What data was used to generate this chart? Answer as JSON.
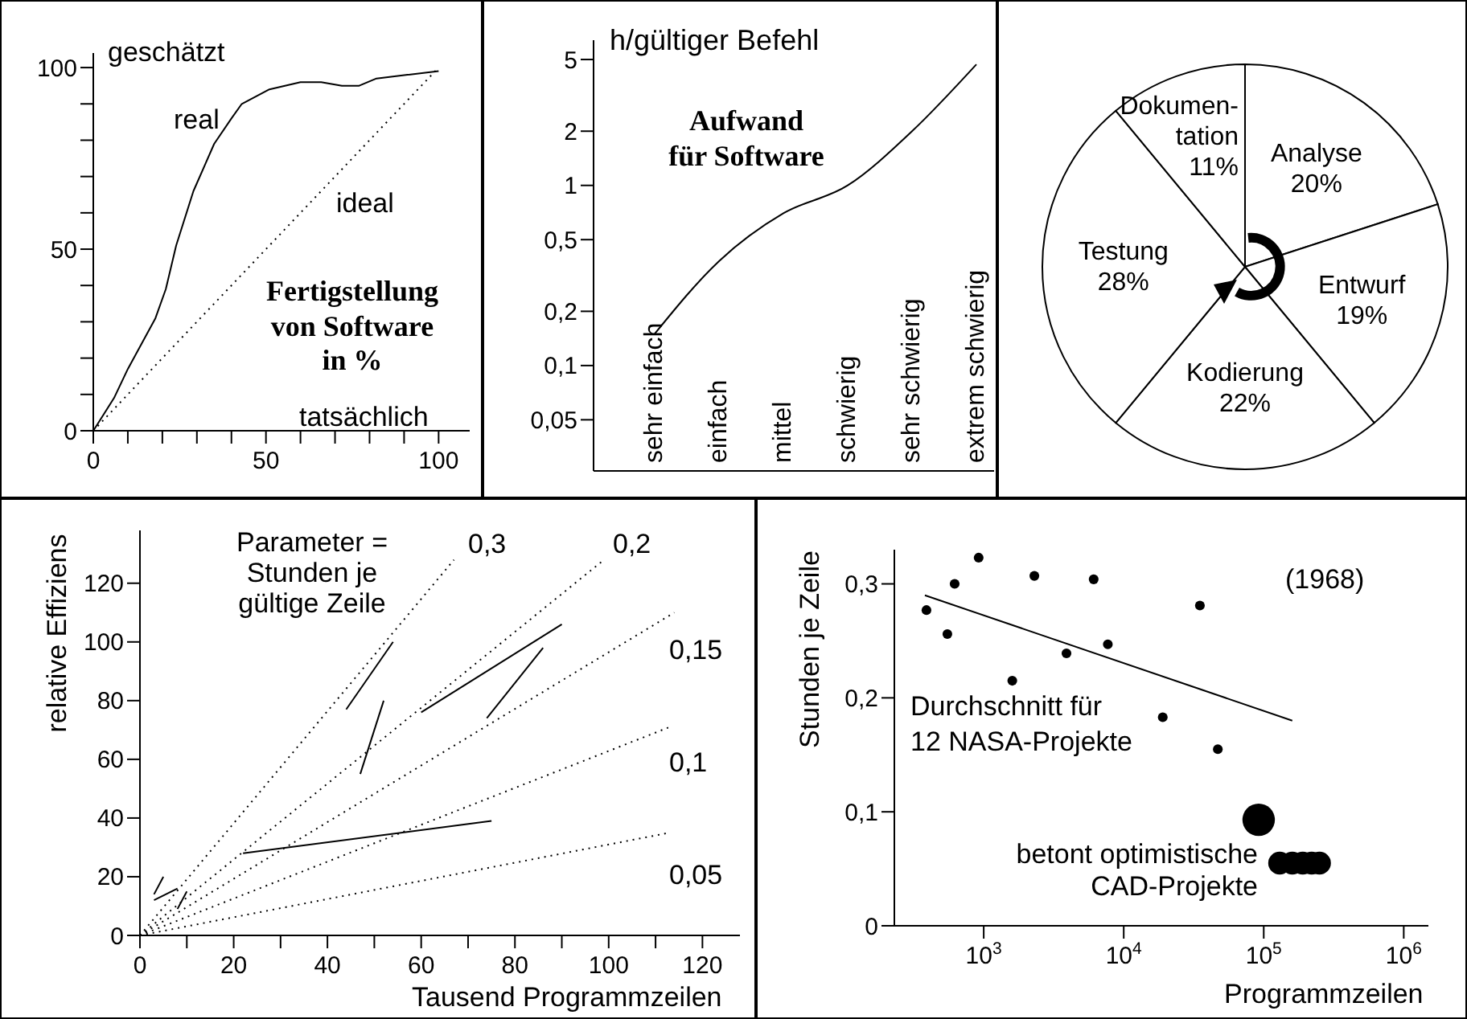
{
  "chart_data": [
    {
      "type": "line",
      "title": "Fertigstellung\nvon Software\nin %",
      "xlabel": "tatsächlich",
      "ylabel": "geschätzt",
      "xlim": [
        0,
        109
      ],
      "ylim": [
        0,
        104
      ],
      "xticks": [
        0,
        {
          "value": 10,
          "label": null
        },
        {
          "value": 20,
          "label": null
        },
        {
          "value": 30,
          "label": null
        },
        {
          "value": 40,
          "label": null
        },
        50,
        {
          "value": 60,
          "label": null
        },
        {
          "value": 70,
          "label": null
        },
        {
          "value": 80,
          "label": null
        },
        {
          "value": 90,
          "label": null
        },
        100
      ],
      "yticks": [
        0,
        {
          "value": 10,
          "label": null
        },
        {
          "value": 20,
          "label": null
        },
        {
          "value": 30,
          "label": null
        },
        {
          "value": 40,
          "label": null
        },
        50,
        {
          "value": 60,
          "label": null
        },
        {
          "value": 70,
          "label": null
        },
        {
          "value": 80,
          "label": null
        },
        {
          "value": 90,
          "label": null
        },
        100
      ],
      "series": [
        {
          "name": "real",
          "color": "#000000",
          "line_style": "solid",
          "x": [
            0,
            6,
            10,
            18,
            21,
            24,
            29,
            35,
            40,
            43,
            51,
            60,
            66,
            72,
            77,
            82,
            91,
            100
          ],
          "values": [
            0,
            9,
            17,
            31,
            39,
            51,
            66,
            79,
            86,
            90,
            94,
            96,
            96,
            95,
            95,
            97,
            98,
            99
          ]
        },
        {
          "name": "ideal",
          "color": "#000000",
          "line_style": "dotted",
          "x": [
            0,
            100
          ],
          "values": [
            0,
            100
          ]
        }
      ]
    },
    {
      "type": "line",
      "title": "Aufwand\nfür Software",
      "ylabel": "h/gültiger Befehl",
      "categories": [
        "sehr einfach",
        "einfach",
        "mittel",
        "schwierig",
        "sehr schwierig",
        "extrem schwierig"
      ],
      "values": [
        0.15,
        0.38,
        0.7,
        1,
        2,
        4.7
      ],
      "color": "#000000",
      "log": "y",
      "ylim": [
        0.026,
        6.4
      ],
      "yticks": [
        {
          "value": 0.05,
          "label": "0,05"
        },
        {
          "value": 0.1,
          "label": "0,1"
        },
        {
          "value": 0.2,
          "label": "0,2"
        },
        {
          "value": 0.5,
          "label": "0,5"
        },
        1,
        2,
        5
      ]
    },
    {
      "type": "pie",
      "categories": [
        "Analyse",
        "Entwurf",
        "Kodierung",
        "Testung",
        "Dokumen-\ntation"
      ],
      "values": [
        20,
        19,
        22,
        28,
        11
      ],
      "value_labels": [
        "20%",
        "19%",
        "22%",
        "28%",
        "11%"
      ],
      "colors": [
        "#ffffff",
        "#ffffff",
        "#ffffff",
        "#ffffff",
        "#ffffff"
      ]
    },
    {
      "type": "line",
      "xlabel": "Tausend Programmzeilen",
      "ylabel": "relative Effiziens",
      "xlim": [
        0,
        128
      ],
      "ylim": [
        0,
        138
      ],
      "xticks": [
        0,
        {
          "value": 10,
          "label": null
        },
        20,
        {
          "value": 30,
          "label": null
        },
        40,
        {
          "value": 50,
          "label": null
        },
        60,
        {
          "value": 70,
          "label": null
        },
        80,
        {
          "value": 90,
          "label": null
        },
        100,
        {
          "value": 110,
          "label": null
        },
        120
      ],
      "yticks": [
        0,
        20,
        40,
        60,
        80,
        100,
        120
      ],
      "annotations": [
        "Parameter =\nStunden je\ngültige Zeile"
      ],
      "series": [
        {
          "name": "0,3",
          "color": "#000000",
          "line_style": "dotted",
          "x": [
            0,
            67
          ],
          "values": [
            0,
            128
          ]
        },
        {
          "name": "0,2",
          "color": "#000000",
          "line_style": "dotted",
          "x": [
            0,
            99
          ],
          "values": [
            0,
            128
          ]
        },
        {
          "name": "0,15",
          "color": "#000000",
          "line_style": "dotted",
          "x": [
            0,
            114
          ],
          "values": [
            0,
            110
          ]
        },
        {
          "name": "0,1",
          "color": "#000000",
          "line_style": "dotted",
          "x": [
            0,
            113
          ],
          "values": [
            0,
            71
          ]
        },
        {
          "name": "0,05",
          "color": "#000000",
          "line_style": "dotted",
          "x": [
            0,
            113
          ],
          "values": [
            0,
            35
          ]
        },
        {
          "color": "#000000",
          "line_style": "solid",
          "x": [
            44,
            54
          ],
          "values": [
            77,
            100
          ]
        },
        {
          "color": "#000000",
          "line_style": "solid",
          "x": [
            47,
            52
          ],
          "values": [
            55,
            80
          ]
        },
        {
          "color": "#000000",
          "line_style": "solid",
          "x": [
            60,
            90
          ],
          "values": [
            76,
            106
          ]
        },
        {
          "color": "#000000",
          "line_style": "solid",
          "x": [
            74,
            86
          ],
          "values": [
            74,
            98
          ]
        },
        {
          "color": "#000000",
          "line_style": "solid",
          "x": [
            22,
            75
          ],
          "values": [
            28,
            39
          ]
        },
        {
          "color": "#000000",
          "line_style": "solid",
          "x": [
            3,
            5
          ],
          "values": [
            14,
            20
          ]
        },
        {
          "color": "#000000",
          "line_style": "solid",
          "x": [
            3,
            8
          ],
          "values": [
            12,
            16
          ]
        },
        {
          "color": "#000000",
          "line_style": "solid",
          "x": [
            8,
            10
          ],
          "values": [
            9,
            15
          ]
        }
      ]
    },
    {
      "type": "scatter",
      "xlabel": "Programmzeilen",
      "ylabel": "Stunden je Zeile",
      "log": "x",
      "xlim": [
        230,
        1500000
      ],
      "ylim": [
        0,
        0.33
      ],
      "xticks": [
        {
          "value": 1000,
          "label": "10$^{3}$"
        },
        {
          "value": 10000,
          "label": "10$^{4}$"
        },
        {
          "value": 100000,
          "label": "10$^{5}$"
        },
        {
          "value": 1000000,
          "label": "10$^{6}$"
        }
      ],
      "yticks": [
        0,
        {
          "value": 0.1,
          "label": "0,1"
        },
        {
          "value": 0.2,
          "label": "0,2"
        },
        {
          "value": 0.3,
          "label": "0,3"
        }
      ],
      "annotations": [
        "(1968)",
        "Durchschnitt für\n12 NASA-Projekte",
        "betont optimistische\nCAD-Projekte"
      ],
      "series": [
        {
          "type": "scatter",
          "marker": "circle",
          "color": "#000000",
          "x": [
            390,
            550,
            620,
            920,
            1600,
            2300,
            3900,
            6100,
            7700,
            19000,
            35000,
            47000
          ],
          "values": [
            0.277,
            0.256,
            0.3,
            0.323,
            0.215,
            0.307,
            0.239,
            0.304,
            0.247,
            0.183,
            0.281,
            0.155
          ]
        },
        {
          "type": "line",
          "color": "#000000",
          "x": [
            380,
            160000
          ],
          "values": [
            0.29,
            0.18
          ]
        },
        {
          "type": "bubble",
          "marker": "circle",
          "color": "#000000",
          "x": [
            92000,
            130000,
            160000,
            190000,
            220000,
            250000
          ],
          "values": [
            0.093,
            0.055,
            0.055,
            0.055,
            0.055,
            0.055
          ],
          "sizes": [
            1,
            0.5,
            0.5,
            0.5,
            0.5,
            0.5
          ]
        }
      ]
    }
  ]
}
